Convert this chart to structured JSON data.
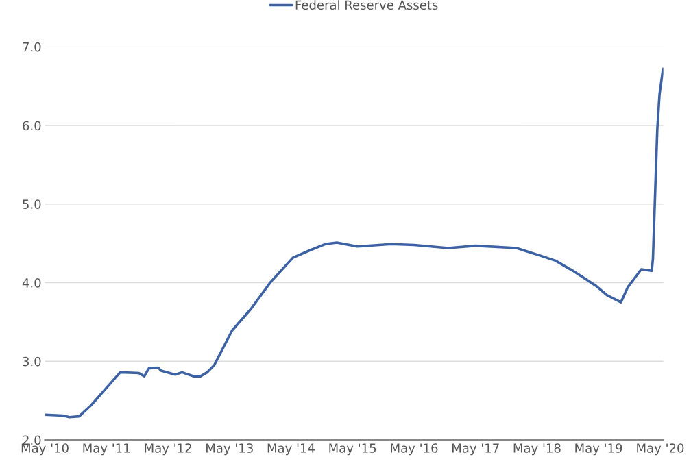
{
  "chart_data": {
    "type": "line",
    "x": [
      "2010-05-01",
      "2010-08-15",
      "2010-09-23",
      "2010-11-20",
      "2011-01-30",
      "2011-07-22",
      "2011-11-10",
      "2011-12-12",
      "2012-01-08",
      "2012-03-03",
      "2012-03-21",
      "2012-06-13",
      "2012-07-23",
      "2012-09-28",
      "2012-11-10",
      "2012-12-20",
      "2013-01-30",
      "2013-05-16",
      "2013-09-03",
      "2014-01-01",
      "2014-05-14",
      "2014-08-19",
      "2014-11-20",
      "2015-01-28",
      "2015-05-30",
      "2015-12-17",
      "2016-05-01",
      "2016-11-20",
      "2017-05-01",
      "2017-12-30",
      "2018-05-12",
      "2018-08-18",
      "2018-12-01",
      "2019-04-16",
      "2019-06-21",
      "2019-09-11",
      "2019-10-21",
      "2020-01-10",
      "2020-03-12",
      "2020-03-19",
      "2020-04-14",
      "2020-04-27",
      "2020-05-18"
    ],
    "series": [
      {
        "name": "Federal Reserve Assets",
        "color": "#3d62a4",
        "values": [
          2.32,
          2.31,
          2.29,
          2.3,
          2.44,
          2.86,
          2.85,
          2.81,
          2.91,
          2.92,
          2.88,
          2.83,
          2.86,
          2.81,
          2.81,
          2.86,
          2.95,
          3.39,
          3.66,
          4.01,
          4.32,
          4.41,
          4.49,
          4.51,
          4.46,
          4.49,
          4.48,
          4.44,
          4.47,
          4.44,
          4.35,
          4.28,
          4.15,
          3.96,
          3.84,
          3.75,
          3.94,
          4.17,
          4.15,
          4.3,
          5.95,
          6.39,
          6.72
        ]
      }
    ],
    "xlim": [
      "2010-05-01",
      "2020-05-20"
    ],
    "xticks": [
      {
        "value": "2010-05-01",
        "label": "May '10"
      },
      {
        "value": "2011-05-01",
        "label": "May '11"
      },
      {
        "value": "2012-05-01",
        "label": "May '12"
      },
      {
        "value": "2013-05-01",
        "label": "May '13"
      },
      {
        "value": "2014-05-01",
        "label": "May '14"
      },
      {
        "value": "2015-05-01",
        "label": "May '15"
      },
      {
        "value": "2016-05-01",
        "label": "May '16"
      },
      {
        "value": "2017-05-01",
        "label": "May '17"
      },
      {
        "value": "2018-05-01",
        "label": "May '18"
      },
      {
        "value": "2019-05-01",
        "label": "May '19"
      },
      {
        "value": "2020-05-01",
        "label": "May '20"
      }
    ],
    "ylim": [
      2.0,
      7.0
    ],
    "yticks": [
      {
        "value": 2.0,
        "label": "2.0"
      },
      {
        "value": 3.0,
        "label": "3.0"
      },
      {
        "value": 4.0,
        "label": "4.0"
      },
      {
        "value": 5.0,
        "label": "5.0"
      },
      {
        "value": 6.0,
        "label": "6.0"
      },
      {
        "value": 7.0,
        "label": "7.0"
      }
    ],
    "grid": "y",
    "legend": "top",
    "marker": "none",
    "line_style": "solid"
  }
}
